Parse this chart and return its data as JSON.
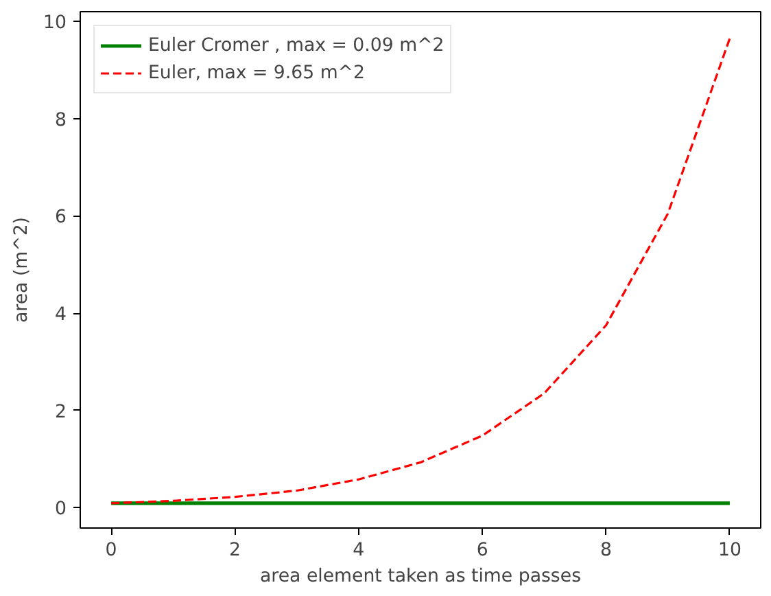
{
  "chart_data": {
    "type": "line",
    "xlabel": "area element taken as time passes",
    "ylabel": "area (m^2)",
    "x": [
      0,
      1,
      2,
      3,
      4,
      5,
      6,
      7,
      8,
      9,
      10
    ],
    "series": [
      {
        "name": "Euler Cromer , max = 0.09 m^2",
        "color": "#008000",
        "line_style": "solid",
        "values": [
          0.09,
          0.09,
          0.09,
          0.09,
          0.09,
          0.09,
          0.09,
          0.09,
          0.09,
          0.09,
          0.09
        ]
      },
      {
        "name": "Euler, max = 9.65 m^2",
        "color": "#ff0000",
        "line_style": "dashed",
        "values": [
          0.09,
          0.14,
          0.22,
          0.35,
          0.58,
          0.93,
          1.48,
          2.35,
          3.75,
          6.05,
          9.65
        ]
      }
    ],
    "xlim": [
      -0.5,
      10.5
    ],
    "ylim": [
      -0.42,
      10.2
    ],
    "xticks": [
      0,
      2,
      4,
      6,
      8,
      10
    ],
    "yticks": [
      0,
      2,
      4,
      6,
      8,
      10
    ],
    "grid": false,
    "legend": "top left",
    "marker": "none"
  }
}
